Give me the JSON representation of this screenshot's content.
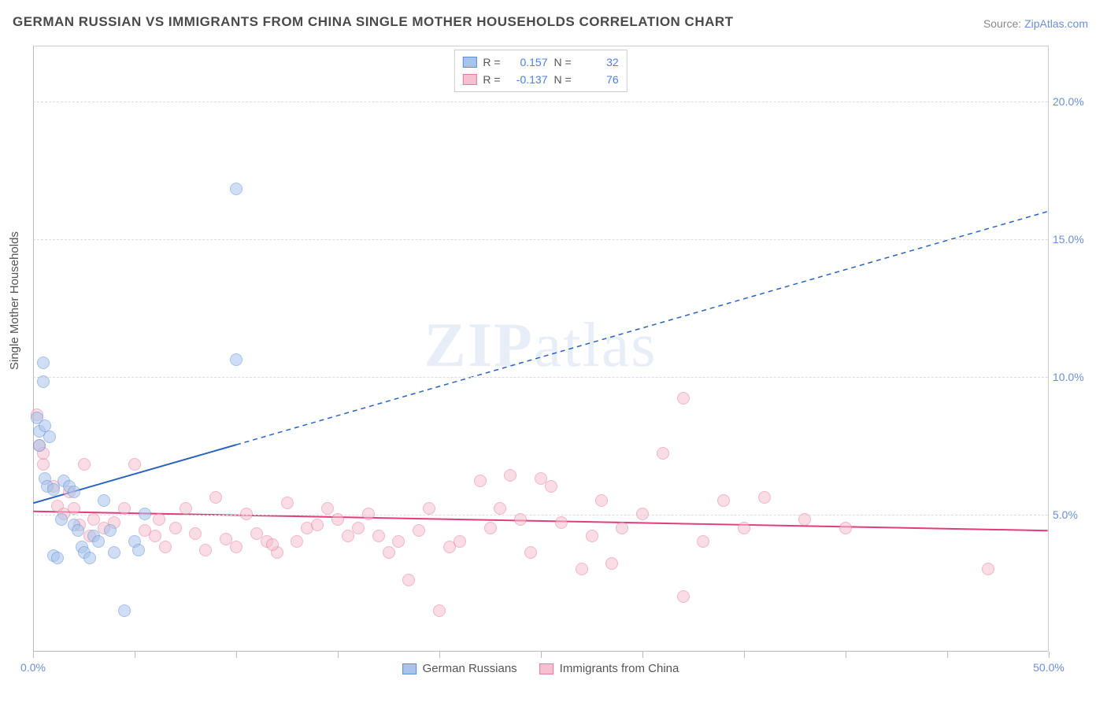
{
  "title": "GERMAN RUSSIAN VS IMMIGRANTS FROM CHINA SINGLE MOTHER HOUSEHOLDS CORRELATION CHART",
  "source_prefix": "Source: ",
  "source_name": "ZipAtlas.com",
  "ylabel": "Single Mother Households",
  "watermark_bold": "ZIP",
  "watermark_rest": "atlas",
  "chart": {
    "type": "scatter",
    "xlim": [
      0,
      50
    ],
    "ylim": [
      0,
      22
    ],
    "x_ticks": [
      0,
      5,
      10,
      15,
      20,
      25,
      30,
      35,
      40,
      45,
      50
    ],
    "x_tick_labels": {
      "0": "0.0%",
      "50": "50.0%"
    },
    "y_gridlines": [
      5,
      10,
      15,
      20
    ],
    "y_tick_labels": {
      "5": "5.0%",
      "10": "10.0%",
      "15": "15.0%",
      "20": "20.0%"
    },
    "background_color": "#ffffff",
    "grid_color": "#dcdcdc",
    "axis_color": "#bbbbbb",
    "label_color": "#6a8fd8",
    "title_fontsize": 17,
    "label_fontsize": 14,
    "marker_radius": 8,
    "marker_opacity": 0.55,
    "series": [
      {
        "name": "German Russians",
        "fill": "#a8c4ec",
        "stroke": "#5b8fd6",
        "r_value": "0.157",
        "n_value": "32",
        "trend": {
          "x1": 0,
          "y1": 5.4,
          "x2": 50,
          "y2": 16.0,
          "solid_until_x": 10,
          "color": "#2a63c0",
          "width": 2
        },
        "points": [
          [
            0.2,
            8.5
          ],
          [
            0.3,
            8.0
          ],
          [
            0.3,
            7.5
          ],
          [
            0.5,
            10.5
          ],
          [
            0.5,
            9.8
          ],
          [
            0.6,
            8.2
          ],
          [
            0.6,
            6.3
          ],
          [
            0.7,
            6.0
          ],
          [
            0.8,
            7.8
          ],
          [
            1.0,
            5.9
          ],
          [
            1.0,
            3.5
          ],
          [
            1.2,
            3.4
          ],
          [
            1.5,
            6.2
          ],
          [
            1.8,
            6.0
          ],
          [
            2.0,
            4.6
          ],
          [
            2.0,
            5.8
          ],
          [
            2.2,
            4.4
          ],
          [
            2.4,
            3.8
          ],
          [
            2.5,
            3.6
          ],
          [
            3.0,
            4.2
          ],
          [
            3.2,
            4.0
          ],
          [
            3.5,
            5.5
          ],
          [
            3.8,
            4.4
          ],
          [
            4.0,
            3.6
          ],
          [
            4.5,
            1.5
          ],
          [
            5.0,
            4.0
          ],
          [
            5.2,
            3.7
          ],
          [
            5.5,
            5.0
          ],
          [
            10.0,
            10.6
          ],
          [
            10.0,
            16.8
          ],
          [
            2.8,
            3.4
          ],
          [
            1.4,
            4.8
          ]
        ]
      },
      {
        "name": "Immigrants from China",
        "fill": "#f5c0cf",
        "stroke": "#e57ba0",
        "r_value": "-0.137",
        "n_value": "76",
        "trend": {
          "x1": 0,
          "y1": 5.1,
          "x2": 50,
          "y2": 4.4,
          "solid_until_x": 50,
          "color": "#e23d7b",
          "width": 2
        },
        "points": [
          [
            0.2,
            8.6
          ],
          [
            0.3,
            7.5
          ],
          [
            0.5,
            6.8
          ],
          [
            0.5,
            7.2
          ],
          [
            1.0,
            6.0
          ],
          [
            1.2,
            5.3
          ],
          [
            1.5,
            5.0
          ],
          [
            2.0,
            5.2
          ],
          [
            2.3,
            4.6
          ],
          [
            2.5,
            6.8
          ],
          [
            3.0,
            4.8
          ],
          [
            3.5,
            4.5
          ],
          [
            4.0,
            4.7
          ],
          [
            4.5,
            5.2
          ],
          [
            5.0,
            6.8
          ],
          [
            5.5,
            4.4
          ],
          [
            6.0,
            4.2
          ],
          [
            6.5,
            3.8
          ],
          [
            7.0,
            4.5
          ],
          [
            7.5,
            5.2
          ],
          [
            8.0,
            4.3
          ],
          [
            8.5,
            3.7
          ],
          [
            9.0,
            5.6
          ],
          [
            9.5,
            4.1
          ],
          [
            10.0,
            3.8
          ],
          [
            10.5,
            5.0
          ],
          [
            11.0,
            4.3
          ],
          [
            11.5,
            4.0
          ],
          [
            12.0,
            3.6
          ],
          [
            12.5,
            5.4
          ],
          [
            13.0,
            4.0
          ],
          [
            13.5,
            4.5
          ],
          [
            14.0,
            4.6
          ],
          [
            14.5,
            5.2
          ],
          [
            15.0,
            4.8
          ],
          [
            15.5,
            4.2
          ],
          [
            16.0,
            4.5
          ],
          [
            16.5,
            5.0
          ],
          [
            17.0,
            4.2
          ],
          [
            17.5,
            3.6
          ],
          [
            18.0,
            4.0
          ],
          [
            18.5,
            2.6
          ],
          [
            19.0,
            4.4
          ],
          [
            20.0,
            1.5
          ],
          [
            20.5,
            3.8
          ],
          [
            21.0,
            4.0
          ],
          [
            22.0,
            6.2
          ],
          [
            22.5,
            4.5
          ],
          [
            23.0,
            5.2
          ],
          [
            23.5,
            6.4
          ],
          [
            24.0,
            4.8
          ],
          [
            24.5,
            3.6
          ],
          [
            25.0,
            6.3
          ],
          [
            25.5,
            6.0
          ],
          [
            26.0,
            4.7
          ],
          [
            27.0,
            3.0
          ],
          [
            27.5,
            4.2
          ],
          [
            28.0,
            5.5
          ],
          [
            28.5,
            3.2
          ],
          [
            29.0,
            4.5
          ],
          [
            30.0,
            5.0
          ],
          [
            31.0,
            7.2
          ],
          [
            32.0,
            9.2
          ],
          [
            32.0,
            2.0
          ],
          [
            33.0,
            4.0
          ],
          [
            34.0,
            5.5
          ],
          [
            35.0,
            4.5
          ],
          [
            36.0,
            5.6
          ],
          [
            38.0,
            4.8
          ],
          [
            40.0,
            4.5
          ],
          [
            1.8,
            5.8
          ],
          [
            2.8,
            4.2
          ],
          [
            6.2,
            4.8
          ],
          [
            11.8,
            3.9
          ],
          [
            19.5,
            5.2
          ],
          [
            47.0,
            3.0
          ]
        ]
      }
    ]
  },
  "legend_top": {
    "r_label": "R =",
    "n_label": "N ="
  },
  "legend_bottom": [
    "German Russians",
    "Immigrants from China"
  ]
}
